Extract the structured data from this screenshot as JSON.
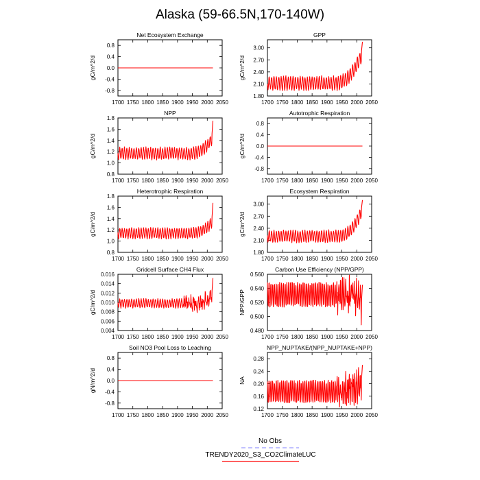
{
  "title": "Alaska (59-66.5N,170-140W)",
  "colors": {
    "model": "#ff0000",
    "obs": "#9b9bff",
    "axis": "#000000"
  },
  "legend": {
    "obs_label": "No Obs",
    "model_label": "TRENDY2020_S3_CO2ClimateLUC"
  },
  "chart_data": [
    {
      "type": "line",
      "title": "Net Ecosystem Exchange",
      "ylabel": "gC/m^2/d",
      "xlim": [
        1700,
        2050
      ],
      "ylim": [
        -1.0,
        1.0
      ],
      "xticks": [
        1700,
        1750,
        1800,
        1850,
        1900,
        1950,
        2000,
        2050
      ],
      "yticks": [
        -0.8,
        -0.4,
        0.0,
        0.4,
        0.8
      ],
      "ytick_labels": [
        "-0.8",
        "-0.4",
        "0.0",
        "0.4",
        "0.8"
      ],
      "series": [
        {
          "name": "TRENDY2020_S3_CO2ClimateLUC",
          "kind": "flat",
          "x_start": 1700,
          "x_end": 2019,
          "value": 0.0
        }
      ]
    },
    {
      "type": "line",
      "title": "GPP",
      "ylabel": "gC/m^2/d",
      "xlim": [
        1700,
        2050
      ],
      "ylim": [
        1.8,
        3.2
      ],
      "xticks": [
        1700,
        1750,
        1800,
        1850,
        1900,
        1950,
        2000,
        2050
      ],
      "yticks": [
        1.8,
        2.1,
        2.4,
        2.7,
        3.0
      ],
      "ytick_labels": [
        "1.80",
        "2.10",
        "2.40",
        "2.70",
        "3.00"
      ],
      "series": [
        {
          "name": "TRENDY2020_S3_CO2ClimateLUC",
          "kind": "oscillating",
          "x_start": 1700,
          "x_end": 2019,
          "base": 2.12,
          "amp": 0.16,
          "period": 8,
          "trend_start": 1930,
          "trend_end_value": 2.85,
          "end_peak": 3.15,
          "seed": 3
        }
      ]
    },
    {
      "type": "line",
      "title": "NPP",
      "ylabel": "gC/m^2/d",
      "xlim": [
        1700,
        2050
      ],
      "ylim": [
        0.8,
        1.8
      ],
      "xticks": [
        1700,
        1750,
        1800,
        1850,
        1900,
        1950,
        2000,
        2050
      ],
      "yticks": [
        0.8,
        1.0,
        1.2,
        1.4,
        1.6,
        1.8
      ],
      "ytick_labels": [
        "0.8",
        "1.0",
        "1.2",
        "1.4",
        "1.6",
        "1.8"
      ],
      "series": [
        {
          "name": "TRENDY2020_S3_CO2ClimateLUC",
          "kind": "oscillating",
          "x_start": 1700,
          "x_end": 2019,
          "base": 1.17,
          "amp": 0.1,
          "period": 8,
          "trend_start": 1950,
          "trend_end_value": 1.45,
          "end_peak": 1.75,
          "seed": 7
        }
      ]
    },
    {
      "type": "line",
      "title": "Autotrophic Respiration",
      "ylabel": "gC/m^2/d",
      "xlim": [
        1700,
        2050
      ],
      "ylim": [
        -1.0,
        1.0
      ],
      "xticks": [
        1700,
        1750,
        1800,
        1850,
        1900,
        1950,
        2000,
        2050
      ],
      "yticks": [
        -0.8,
        -0.4,
        0.0,
        0.4,
        0.8
      ],
      "ytick_labels": [
        "-0.8",
        "-0.4",
        "0.0",
        "0.4",
        "0.8"
      ],
      "series": [
        {
          "name": "TRENDY2020_S3_CO2ClimateLUC",
          "kind": "flat",
          "x_start": 1700,
          "x_end": 2019,
          "value": 0.0
        }
      ]
    },
    {
      "type": "line",
      "title": "Heterotrophic Respiration",
      "ylabel": "gC/m^2/d",
      "xlim": [
        1700,
        2050
      ],
      "ylim": [
        0.8,
        1.8
      ],
      "xticks": [
        1700,
        1750,
        1800,
        1850,
        1900,
        1950,
        2000,
        2050
      ],
      "yticks": [
        0.8,
        1.0,
        1.2,
        1.4,
        1.6,
        1.8
      ],
      "ytick_labels": [
        "0.8",
        "1.0",
        "1.2",
        "1.4",
        "1.6",
        "1.8"
      ],
      "series": [
        {
          "name": "TRENDY2020_S3_CO2ClimateLUC",
          "kind": "oscillating",
          "x_start": 1700,
          "x_end": 2019,
          "base": 1.14,
          "amp": 0.09,
          "period": 8,
          "trend_start": 1950,
          "trend_end_value": 1.35,
          "end_peak": 1.68,
          "seed": 11
        }
      ]
    },
    {
      "type": "line",
      "title": "Ecosystem Respiration",
      "ylabel": "gC/m^2/d",
      "xlim": [
        1700,
        2050
      ],
      "ylim": [
        1.8,
        3.2
      ],
      "xticks": [
        1700,
        1750,
        1800,
        1850,
        1900,
        1950,
        2000,
        2050
      ],
      "yticks": [
        1.8,
        2.1,
        2.4,
        2.7,
        3.0
      ],
      "ytick_labels": [
        "1.80",
        "2.10",
        "2.40",
        "2.70",
        "3.00"
      ],
      "series": [
        {
          "name": "TRENDY2020_S3_CO2ClimateLUC",
          "kind": "oscillating",
          "x_start": 1700,
          "x_end": 2019,
          "base": 2.2,
          "amp": 0.14,
          "period": 8,
          "trend_start": 1940,
          "trend_end_value": 2.85,
          "end_peak": 3.1,
          "seed": 17
        }
      ]
    },
    {
      "type": "line",
      "title": "Gridcell Surface CH4 Flux",
      "ylabel": "gC/m^2/d",
      "xlim": [
        1700,
        2050
      ],
      "ylim": [
        0.004,
        0.016
      ],
      "xticks": [
        1700,
        1750,
        1800,
        1850,
        1900,
        1950,
        2000,
        2050
      ],
      "yticks": [
        0.004,
        0.006,
        0.008,
        0.01,
        0.012,
        0.014,
        0.016
      ],
      "ytick_labels": [
        "0.004",
        "0.006",
        "0.008",
        "0.010",
        "0.012",
        "0.014",
        "0.016"
      ],
      "series": [
        {
          "name": "TRENDY2020_S3_CO2ClimateLUC",
          "kind": "oscillating",
          "x_start": 1700,
          "x_end": 2019,
          "base": 0.0098,
          "amp": 0.0009,
          "period": 8,
          "trend_start": 1960,
          "trend_end_value": 0.0115,
          "end_peak": 0.0152,
          "noisy_after": 1920,
          "noisy_amp": 0.0025,
          "seed": 23
        }
      ]
    },
    {
      "type": "line",
      "title": "Carbon Use Efficiency (NPP/GPP)",
      "ylabel": "NPP/GPP",
      "xlim": [
        1700,
        2050
      ],
      "ylim": [
        0.48,
        0.56
      ],
      "xticks": [
        1700,
        1750,
        1800,
        1850,
        1900,
        1950,
        2000,
        2050
      ],
      "yticks": [
        0.48,
        0.5,
        0.52,
        0.54,
        0.56
      ],
      "ytick_labels": [
        "0.480",
        "0.500",
        "0.520",
        "0.540",
        "0.560"
      ],
      "series": [
        {
          "name": "TRENDY2020_S3_CO2ClimateLUC",
          "kind": "oscillating",
          "x_start": 1700,
          "x_end": 2019,
          "base": 0.531,
          "amp": 0.017,
          "period": 6,
          "trend_start": 1990,
          "trend_end_value": 0.515,
          "end_peak": 0.545,
          "noisy_after": 1930,
          "noisy_amp": 0.03,
          "seed": 29
        }
      ]
    },
    {
      "type": "line",
      "title": "Soil NO3 Pool Loss to Leaching",
      "ylabel": "gN/m^2/d",
      "xlim": [
        1700,
        2050
      ],
      "ylim": [
        -1.0,
        1.0
      ],
      "xticks": [
        1700,
        1750,
        1800,
        1850,
        1900,
        1950,
        2000,
        2050
      ],
      "yticks": [
        -0.8,
        -0.4,
        0.0,
        0.4,
        0.8
      ],
      "ytick_labels": [
        "-0.8",
        "-0.4",
        "0.0",
        "0.4",
        "0.8"
      ],
      "series": [
        {
          "name": "TRENDY2020_S3_CO2ClimateLUC",
          "kind": "flat",
          "x_start": 1700,
          "x_end": 2019,
          "value": 0.0
        }
      ]
    },
    {
      "type": "line",
      "title": "NPP_NUPTAKE/(NPP_NUPTAKE+NPP)",
      "ylabel": "NA",
      "xlim": [
        1700,
        2050
      ],
      "ylim": [
        0.12,
        0.3
      ],
      "xticks": [
        1700,
        1750,
        1800,
        1850,
        1900,
        1950,
        2000,
        2050
      ],
      "yticks": [
        0.12,
        0.16,
        0.2,
        0.24,
        0.28
      ],
      "ytick_labels": [
        "0.12",
        "0.16",
        "0.20",
        "0.24",
        "0.28"
      ],
      "series": [
        {
          "name": "TRENDY2020_S3_CO2ClimateLUC",
          "kind": "oscillating",
          "x_start": 1700,
          "x_end": 2019,
          "base": 0.175,
          "amp": 0.035,
          "period": 6,
          "trend_start": 1930,
          "trend_end_value": 0.2,
          "end_peak": 0.26,
          "noisy_after": 1930,
          "noisy_amp": 0.06,
          "seed": 31
        }
      ]
    }
  ]
}
